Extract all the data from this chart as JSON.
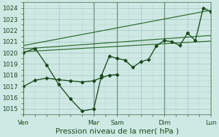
{
  "bg_color": "#cee8e4",
  "grid_color": "#99bbbb",
  "line_color": "#2a6b2a",
  "dark_line_color": "#1a4a1a",
  "ylim": [
    1014.5,
    1024.5
  ],
  "yticks": [
    1015,
    1016,
    1017,
    1018,
    1019,
    1020,
    1021,
    1022,
    1023,
    1024
  ],
  "xlabel": "Pression niveau de la mer( hPa )",
  "xlabel_fontsize": 8,
  "tick_fontsize": 6.5,
  "xtick_labels": [
    "Ven",
    "",
    "Mar",
    "Sam",
    "",
    "Dim",
    "",
    "Lun"
  ],
  "xtick_positions": [
    0,
    18,
    36,
    48,
    60,
    72,
    84,
    96
  ],
  "vline_positions": [
    0,
    36,
    48,
    72,
    96
  ],
  "main_line_x": [
    0,
    6,
    12,
    18,
    24,
    30,
    36,
    40,
    44,
    48,
    52,
    56,
    60,
    64,
    68,
    72,
    76,
    80,
    84,
    88,
    92,
    96
  ],
  "main_line_y": [
    1020.0,
    1020.4,
    1018.9,
    1017.2,
    1015.9,
    1014.8,
    1015.0,
    1018.0,
    1019.7,
    1019.5,
    1019.35,
    1018.7,
    1019.2,
    1019.4,
    1020.6,
    1021.1,
    1021.0,
    1020.65,
    1021.75,
    1021.1,
    1024.0,
    1023.65
  ],
  "lower_line_x": [
    0,
    6,
    12,
    18,
    24,
    30,
    36,
    40,
    44,
    48
  ],
  "lower_line_y": [
    1017.0,
    1017.55,
    1017.75,
    1017.6,
    1017.5,
    1017.4,
    1017.5,
    1017.8,
    1018.0,
    1018.05
  ],
  "band_line1_x": [
    0,
    96
  ],
  "band_line1_y": [
    1020.1,
    1021.05
  ],
  "band_line2_x": [
    0,
    96
  ],
  "band_line2_y": [
    1020.35,
    1021.55
  ],
  "band_line3_x": [
    0,
    96
  ],
  "band_line3_y": [
    1020.65,
    1023.8
  ]
}
